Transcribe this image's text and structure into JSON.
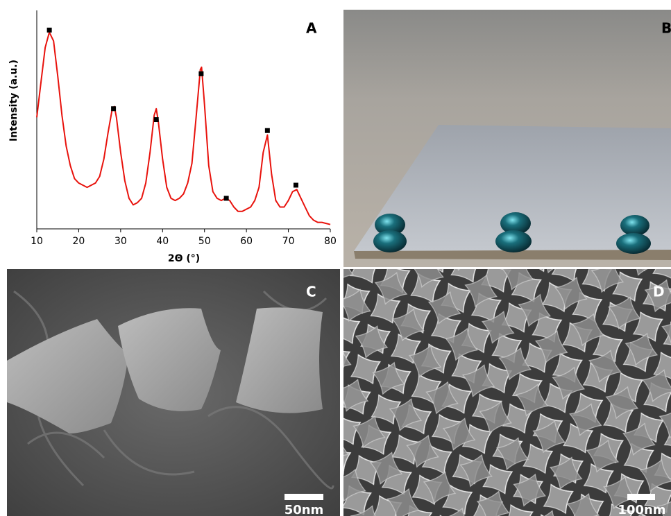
{
  "chart_data": {
    "type": "line",
    "label": "A",
    "xlabel": "2Θ (°)",
    "ylabel": "Intensity (a.u.)",
    "x": [
      10,
      11,
      12,
      13,
      14,
      15,
      16,
      17,
      18,
      19,
      20,
      22,
      24,
      25,
      26,
      27,
      28,
      28.5,
      29,
      30,
      31,
      32,
      33,
      34,
      35,
      36,
      37,
      38,
      38.5,
      39,
      40,
      41,
      42,
      43,
      44,
      45,
      46,
      47,
      48,
      49,
      49.3,
      50,
      51,
      52,
      53,
      54,
      55,
      56,
      57,
      58,
      59,
      60,
      61,
      62,
      63,
      64,
      65,
      66,
      67,
      68,
      69,
      70,
      71,
      72,
      73,
      74,
      75,
      76,
      77,
      78,
      80
    ],
    "values": [
      51,
      67,
      83,
      90,
      86,
      70,
      52,
      38,
      29,
      23,
      21,
      19,
      21,
      24,
      32,
      44,
      55,
      56,
      51,
      35,
      22,
      14,
      11,
      12,
      14,
      21,
      35,
      52,
      55,
      49,
      32,
      19,
      14,
      13,
      14,
      16,
      21,
      30,
      51,
      73,
      74,
      57,
      29,
      17,
      14,
      13,
      14,
      13,
      10,
      8,
      8,
      9,
      10,
      13,
      19,
      35,
      43,
      25,
      13,
      10,
      10,
      13,
      17,
      18,
      14,
      10,
      6,
      4,
      3,
      3,
      2
    ],
    "color": "#e8120c",
    "markers": {
      "x": [
        13,
        28.3,
        38.5,
        49.2,
        55.2,
        65,
        71.8
      ],
      "values": [
        91,
        55,
        50,
        71,
        14,
        45,
        20
      ],
      "color": "#000000"
    },
    "xlim": [
      10,
      80
    ],
    "xticks": [
      10,
      20,
      30,
      40,
      50,
      60,
      70,
      80
    ],
    "ylim": [
      0,
      100
    ]
  },
  "panels": [
    {
      "label": "B"
    },
    {
      "label": "C",
      "scale_bar": "50nm"
    },
    {
      "label": "D",
      "scale_bar": "100nm"
    }
  ]
}
